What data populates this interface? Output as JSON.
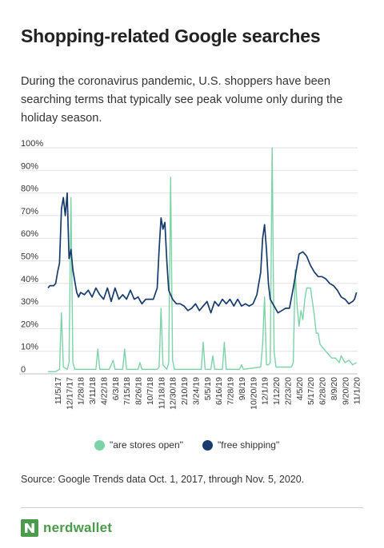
{
  "title": "Shopping-related Google searches",
  "subtitle": "During the coronavirus pandemic, U.S. shoppers have been searching terms that typically see peak volume only during the holiday season.",
  "source": "Source: Google Trends data Oct. 1, 2017, through Nov. 5, 2020.",
  "brand": {
    "name": "nerdwallet",
    "logo_icon": "nerdwallet-n-logo-icon",
    "color": "#4a9b4a"
  },
  "chart_data": {
    "type": "line",
    "title": "",
    "xlabel": "",
    "ylabel": "",
    "ylim": [
      0,
      100
    ],
    "y_ticks": [
      "0",
      "10%",
      "20%",
      "30%",
      "40%",
      "50%",
      "60%",
      "70%",
      "80%",
      "90%",
      "100%"
    ],
    "x_ticks": [
      "11/5/17",
      "12/17/17",
      "1/28/18",
      "3/11/18",
      "4/22/18",
      "6/3/18",
      "7/15/18",
      "8/26/18",
      "10/7/18",
      "11/18/18",
      "12/30/18",
      "2/10/19",
      "3/24/19",
      "5/5/19",
      "6/16/19",
      "7/28/19",
      "9/8/19",
      "10/20/19",
      "12/1/19",
      "1/12/20",
      "2/23/20",
      "4/5/20",
      "5/17/20",
      "6/28/20",
      "8/9/20",
      "9/20/20",
      "11/1/20"
    ],
    "grid": true,
    "legend_position": "bottom",
    "x_start": "2017-10-01",
    "x_end": "2020-11-05",
    "series": [
      {
        "name": "\"are stores open\"",
        "color": "#7dd3a8",
        "points": [
          [
            "2017-10-01",
            1
          ],
          [
            "2017-10-29",
            1
          ],
          [
            "2017-11-12",
            2
          ],
          [
            "2017-11-19",
            27
          ],
          [
            "2017-11-26",
            3
          ],
          [
            "2017-12-10",
            2
          ],
          [
            "2017-12-17",
            5
          ],
          [
            "2017-12-24",
            78
          ],
          [
            "2017-12-31",
            5
          ],
          [
            "2018-01-07",
            2
          ],
          [
            "2018-03-11",
            2
          ],
          [
            "2018-03-25",
            2
          ],
          [
            "2018-04-01",
            11
          ],
          [
            "2018-04-08",
            2
          ],
          [
            "2018-05-13",
            2
          ],
          [
            "2018-05-27",
            6
          ],
          [
            "2018-06-03",
            2
          ],
          [
            "2018-07-01",
            2
          ],
          [
            "2018-07-08",
            11
          ],
          [
            "2018-07-15",
            2
          ],
          [
            "2018-08-26",
            2
          ],
          [
            "2018-09-02",
            5
          ],
          [
            "2018-09-09",
            2
          ],
          [
            "2018-11-04",
            2
          ],
          [
            "2018-11-11",
            3
          ],
          [
            "2018-11-18",
            29
          ],
          [
            "2018-11-25",
            4
          ],
          [
            "2018-12-09",
            2
          ],
          [
            "2018-12-16",
            5
          ],
          [
            "2018-12-23",
            87
          ],
          [
            "2018-12-30",
            6
          ],
          [
            "2019-01-06",
            2
          ],
          [
            "2019-04-14",
            2
          ],
          [
            "2019-04-21",
            14
          ],
          [
            "2019-04-28",
            2
          ],
          [
            "2019-05-19",
            2
          ],
          [
            "2019-05-26",
            8
          ],
          [
            "2019-06-02",
            2
          ],
          [
            "2019-06-30",
            2
          ],
          [
            "2019-07-07",
            14
          ],
          [
            "2019-07-14",
            2
          ],
          [
            "2019-09-01",
            2
          ],
          [
            "2019-09-08",
            4
          ],
          [
            "2019-09-15",
            2
          ],
          [
            "2019-11-17",
            3
          ],
          [
            "2019-11-24",
            13
          ],
          [
            "2019-12-01",
            34
          ],
          [
            "2019-12-08",
            4
          ],
          [
            "2019-12-15",
            4
          ],
          [
            "2019-12-22",
            5
          ],
          [
            "2019-12-29",
            100
          ],
          [
            "2020-01-05",
            10
          ],
          [
            "2020-01-12",
            3
          ],
          [
            "2020-03-08",
            3
          ],
          [
            "2020-03-15",
            5
          ],
          [
            "2020-03-22",
            46
          ],
          [
            "2020-03-29",
            30
          ],
          [
            "2020-04-05",
            21
          ],
          [
            "2020-04-12",
            28
          ],
          [
            "2020-04-19",
            24
          ],
          [
            "2020-04-26",
            33
          ],
          [
            "2020-05-03",
            38
          ],
          [
            "2020-05-10",
            38
          ],
          [
            "2020-05-17",
            38
          ],
          [
            "2020-05-24",
            32
          ],
          [
            "2020-05-31",
            26
          ],
          [
            "2020-06-07",
            18
          ],
          [
            "2020-06-14",
            18
          ],
          [
            "2020-06-21",
            13
          ],
          [
            "2020-06-28",
            12
          ],
          [
            "2020-07-05",
            11
          ],
          [
            "2020-07-19",
            9
          ],
          [
            "2020-08-02",
            7
          ],
          [
            "2020-08-16",
            7
          ],
          [
            "2020-08-30",
            5
          ],
          [
            "2020-09-06",
            8
          ],
          [
            "2020-09-20",
            5
          ],
          [
            "2020-10-04",
            6
          ],
          [
            "2020-10-18",
            4
          ],
          [
            "2020-11-01",
            5
          ]
        ]
      },
      {
        "name": "\"free shipping\"",
        "color": "#173b6c",
        "points": [
          [
            "2017-10-01",
            38
          ],
          [
            "2017-10-08",
            39
          ],
          [
            "2017-10-15",
            39
          ],
          [
            "2017-10-22",
            39
          ],
          [
            "2017-10-29",
            40
          ],
          [
            "2017-11-05",
            45
          ],
          [
            "2017-11-12",
            49
          ],
          [
            "2017-11-19",
            73
          ],
          [
            "2017-11-26",
            78
          ],
          [
            "2017-12-03",
            70
          ],
          [
            "2017-12-10",
            80
          ],
          [
            "2017-12-17",
            51
          ],
          [
            "2017-12-24",
            55
          ],
          [
            "2017-12-31",
            46
          ],
          [
            "2018-01-07",
            41
          ],
          [
            "2018-01-14",
            36
          ],
          [
            "2018-01-21",
            34
          ],
          [
            "2018-01-28",
            36
          ],
          [
            "2018-02-11",
            35
          ],
          [
            "2018-02-25",
            37
          ],
          [
            "2018-03-11",
            34
          ],
          [
            "2018-03-25",
            38
          ],
          [
            "2018-04-08",
            35
          ],
          [
            "2018-04-22",
            33
          ],
          [
            "2018-05-06",
            38
          ],
          [
            "2018-05-20",
            32
          ],
          [
            "2018-06-03",
            38
          ],
          [
            "2018-06-17",
            33
          ],
          [
            "2018-07-01",
            35
          ],
          [
            "2018-07-15",
            33
          ],
          [
            "2018-07-29",
            37
          ],
          [
            "2018-08-12",
            33
          ],
          [
            "2018-08-26",
            34
          ],
          [
            "2018-09-09",
            31
          ],
          [
            "2018-09-23",
            33
          ],
          [
            "2018-10-07",
            33
          ],
          [
            "2018-10-21",
            33
          ],
          [
            "2018-11-04",
            38
          ],
          [
            "2018-11-11",
            55
          ],
          [
            "2018-11-18",
            69
          ],
          [
            "2018-11-25",
            64
          ],
          [
            "2018-12-02",
            67
          ],
          [
            "2018-12-09",
            50
          ],
          [
            "2018-12-16",
            37
          ],
          [
            "2018-12-23",
            35
          ],
          [
            "2018-12-30",
            33
          ],
          [
            "2019-01-13",
            31
          ],
          [
            "2019-01-27",
            31
          ],
          [
            "2019-02-10",
            30
          ],
          [
            "2019-02-24",
            28
          ],
          [
            "2019-03-10",
            29
          ],
          [
            "2019-03-24",
            31
          ],
          [
            "2019-04-07",
            28
          ],
          [
            "2019-04-21",
            30
          ],
          [
            "2019-05-05",
            32
          ],
          [
            "2019-05-19",
            27
          ],
          [
            "2019-06-02",
            32
          ],
          [
            "2019-06-16",
            30
          ],
          [
            "2019-06-30",
            33
          ],
          [
            "2019-07-14",
            31
          ],
          [
            "2019-07-28",
            33
          ],
          [
            "2019-08-11",
            30
          ],
          [
            "2019-08-25",
            33
          ],
          [
            "2019-09-08",
            30
          ],
          [
            "2019-09-22",
            31
          ],
          [
            "2019-10-06",
            30
          ],
          [
            "2019-10-20",
            31
          ],
          [
            "2019-11-03",
            35
          ],
          [
            "2019-11-17",
            45
          ],
          [
            "2019-11-24",
            60
          ],
          [
            "2019-12-01",
            66
          ],
          [
            "2019-12-08",
            55
          ],
          [
            "2019-12-15",
            40
          ],
          [
            "2019-12-22",
            33
          ],
          [
            "2020-01-05",
            30
          ],
          [
            "2020-01-19",
            27
          ],
          [
            "2020-02-02",
            28
          ],
          [
            "2020-02-16",
            29
          ],
          [
            "2020-03-01",
            29
          ],
          [
            "2020-03-15",
            38
          ],
          [
            "2020-03-29",
            48
          ],
          [
            "2020-04-05",
            53
          ],
          [
            "2020-04-19",
            54
          ],
          [
            "2020-05-03",
            52
          ],
          [
            "2020-05-17",
            48
          ],
          [
            "2020-05-31",
            45
          ],
          [
            "2020-06-14",
            43
          ],
          [
            "2020-06-28",
            43
          ],
          [
            "2020-07-12",
            42
          ],
          [
            "2020-07-26",
            40
          ],
          [
            "2020-08-09",
            39
          ],
          [
            "2020-08-23",
            37
          ],
          [
            "2020-09-06",
            34
          ],
          [
            "2020-09-20",
            33
          ],
          [
            "2020-10-04",
            31
          ],
          [
            "2020-10-18",
            32
          ],
          [
            "2020-10-25",
            33
          ],
          [
            "2020-11-01",
            36
          ]
        ]
      }
    ]
  }
}
